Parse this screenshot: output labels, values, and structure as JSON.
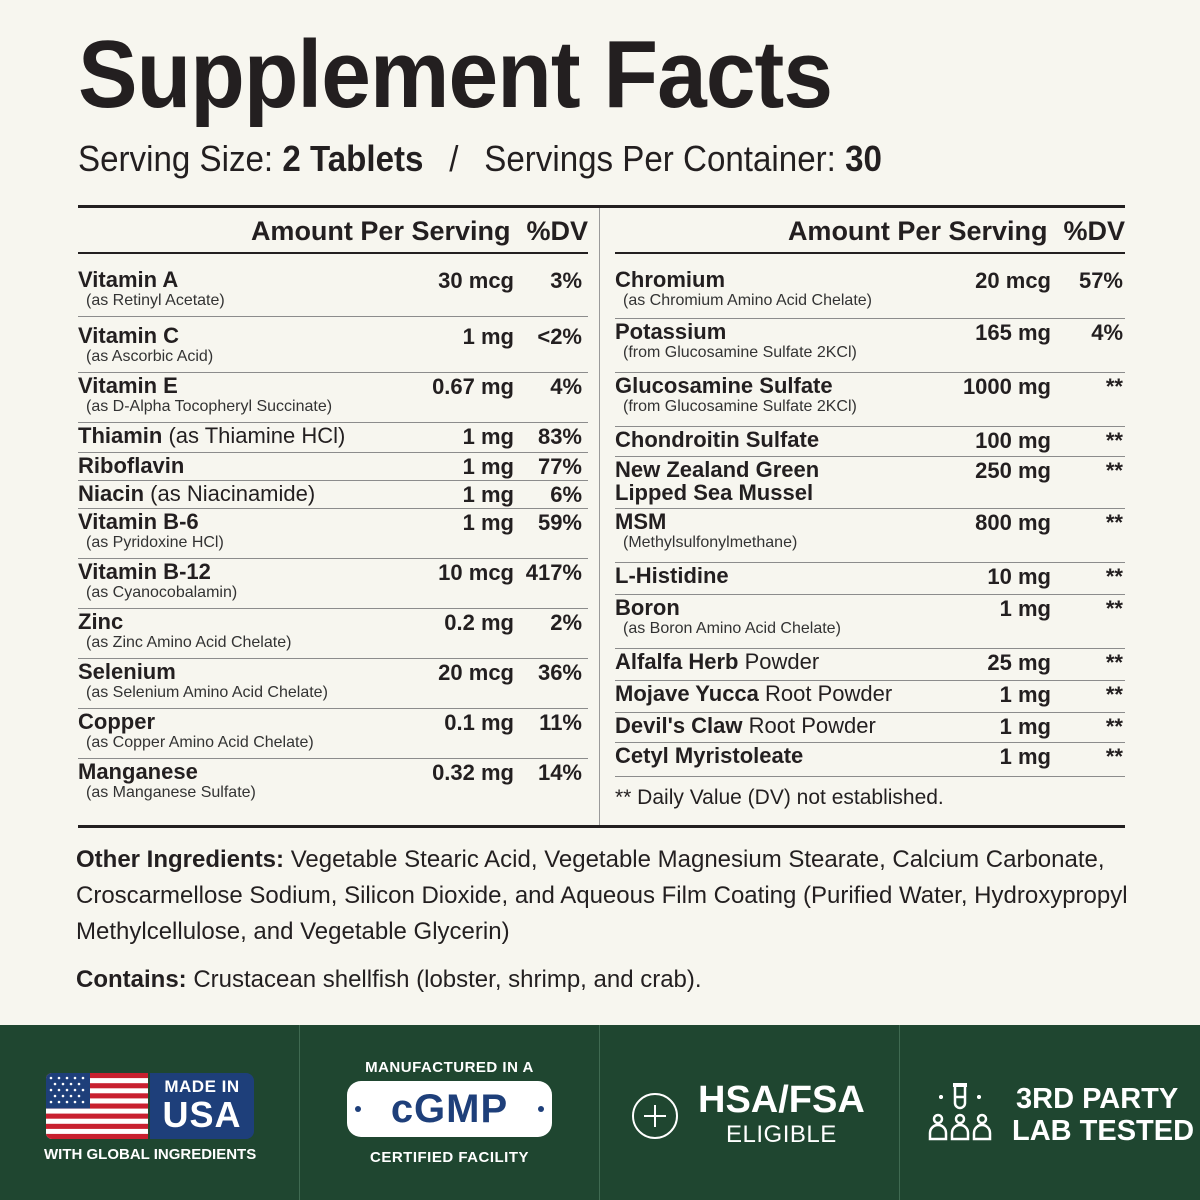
{
  "title": "Supplement Facts",
  "serving": {
    "size_label": "Serving Size:",
    "size_value": "2 Tablets",
    "separator": "/",
    "per_container_label": "Servings Per Container:",
    "per_container_value": "30"
  },
  "columns": {
    "amount_header": "Amount Per Serving",
    "dv_header": "%DV"
  },
  "left_rows": [
    {
      "name": "Vitamin A",
      "rest": "",
      "sub": "(as Retinyl Acetate)",
      "amount": "30 mcg",
      "dv": "3%"
    },
    {
      "name": "Vitamin C",
      "rest": "",
      "sub": "(as Ascorbic Acid)",
      "amount": "1 mg",
      "dv": "<2%"
    },
    {
      "name": "Vitamin E",
      "rest": "",
      "sub": "(as D-Alpha Tocopheryl Succinate)",
      "amount": "0.67 mg",
      "dv": "4%"
    },
    {
      "name": "Thiamin",
      "rest": " (as Thiamine HCl)",
      "sub": "",
      "amount": "1 mg",
      "dv": "83%"
    },
    {
      "name": "Riboflavin",
      "rest": "",
      "sub": "",
      "amount": "1 mg",
      "dv": "77%"
    },
    {
      "name": "Niacin",
      "rest": " (as Niacinamide)",
      "sub": "",
      "amount": "1 mg",
      "dv": "6%"
    },
    {
      "name": "Vitamin B-6",
      "rest": "",
      "sub": "(as Pyridoxine HCl)",
      "amount": "1 mg",
      "dv": "59%"
    },
    {
      "name": "Vitamin B-12",
      "rest": "",
      "sub": "(as Cyanocobalamin)",
      "amount": "10 mcg",
      "dv": "417%"
    },
    {
      "name": "Zinc",
      "rest": "",
      "sub": "(as Zinc Amino Acid Chelate)",
      "amount": "0.2 mg",
      "dv": "2%"
    },
    {
      "name": "Selenium",
      "rest": "",
      "sub": "(as Selenium Amino Acid Chelate)",
      "amount": "20 mcg",
      "dv": "36%"
    },
    {
      "name": "Copper",
      "rest": "",
      "sub": "(as Copper Amino Acid Chelate)",
      "amount": "0.1 mg",
      "dv": "11%"
    },
    {
      "name": "Manganese",
      "rest": "",
      "sub": "(as Manganese Sulfate)",
      "amount": "0.32 mg",
      "dv": "14%"
    }
  ],
  "right_rows": [
    {
      "name": "Chromium",
      "rest": "",
      "sub": "(as Chromium Amino Acid Chelate)",
      "amount": "20 mcg",
      "dv": "57%"
    },
    {
      "name": "Potassium",
      "rest": "",
      "sub": "(from Glucosamine Sulfate 2KCl)",
      "amount": "165 mg",
      "dv": "4%"
    },
    {
      "name": "Glucosamine Sulfate",
      "rest": "",
      "sub": "(from Glucosamine Sulfate 2KCl)",
      "amount": "1000 mg",
      "dv": "**"
    },
    {
      "name": "Chondroitin Sulfate",
      "rest": "",
      "sub": "",
      "amount": "100 mg",
      "dv": "**"
    },
    {
      "name": "New Zealand Green",
      "rest": "",
      "sub": "Lipped Sea Mussel",
      "amount": "250 mg",
      "dv": "**"
    },
    {
      "name": "MSM",
      "rest": "",
      "sub": "(Methylsulfonylmethane)",
      "amount": "800 mg",
      "dv": "**"
    },
    {
      "name": "L-Histidine",
      "rest": "",
      "sub": "",
      "amount": "10 mg",
      "dv": "**"
    },
    {
      "name": "Boron",
      "rest": "",
      "sub": "(as Boron Amino Acid Chelate)",
      "amount": "1 mg",
      "dv": "**"
    },
    {
      "name": "Alfalfa Herb",
      "rest": " Powder",
      "sub": "",
      "amount": "25 mg",
      "dv": "**"
    },
    {
      "name": "Mojave Yucca",
      "rest": " Root Powder",
      "sub": "",
      "amount": "1 mg",
      "dv": "**"
    },
    {
      "name": "Devil's Claw",
      "rest": " Root Powder",
      "sub": "",
      "amount": "1 mg",
      "dv": "**"
    },
    {
      "name": "Cetyl Myristoleate",
      "rest": "",
      "sub": "",
      "amount": "1 mg",
      "dv": "**"
    }
  ],
  "footnote": "** Daily Value (DV) not established.",
  "other_ingredients": {
    "label": "Other Ingredients:",
    "text": " Vegetable Stearic Acid, Vegetable Magnesium Stearate, Calcium Carbonate, Croscarmellose Sodium,  Silicon Dioxide, and Aqueous Film Coating (Purified Water, Hydroxypropyl Methylcellulose,  and Vegetable Glycerin)"
  },
  "contains": {
    "label": "Contains:",
    "text": " Crustacean shellfish (lobster, shrimp, and crab)."
  },
  "badges": {
    "usa": {
      "made_in": "MADE IN",
      "country": "USA",
      "sub": "WITH GLOBAL INGREDIENTS",
      "icon": "us-flag-icon"
    },
    "cgmp": {
      "top": "MANUFACTURED IN A",
      "main": "cGMP",
      "bottom": "CERTIFIED FACILITY"
    },
    "hsa": {
      "title": "HSA/FSA",
      "sub": "ELIGIBLE",
      "icon": "plus-circle-icon"
    },
    "lab": {
      "line1": "3RD PARTY",
      "line2": "LAB TESTED",
      "icon": "lab-test-people-icon"
    }
  },
  "colors": {
    "background": "#f7f6ef",
    "text": "#231f20",
    "footer": "#1f4630",
    "navy": "#1e3f7a",
    "flag_red": "#c8202f"
  }
}
